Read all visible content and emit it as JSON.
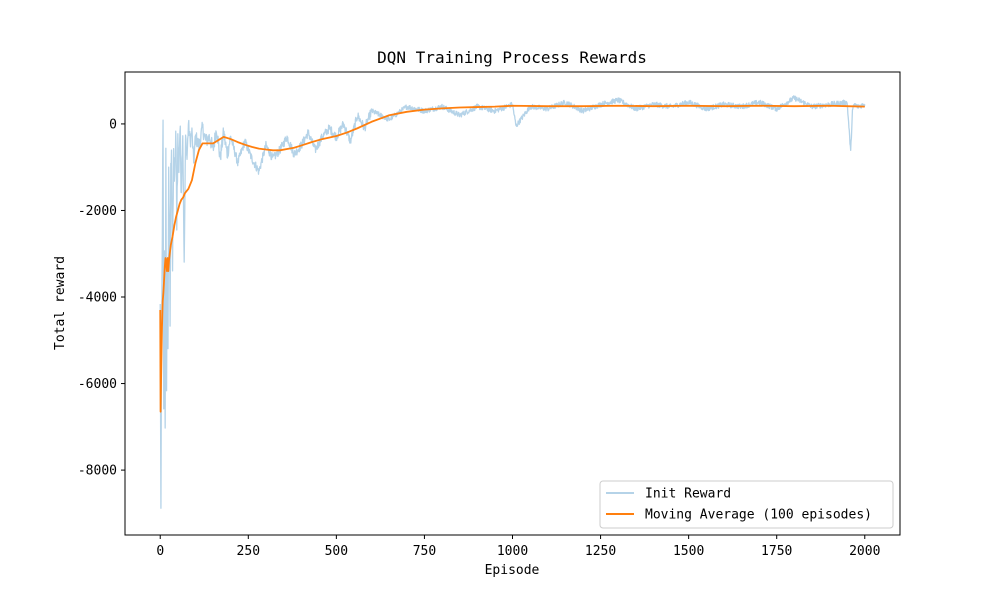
{
  "chart_data": {
    "type": "line",
    "title": "DQN Training Process Rewards",
    "xlabel": "Episode",
    "ylabel": "Total reward",
    "xlim": [
      -100,
      2100
    ],
    "ylim": [
      -9500,
      1200
    ],
    "x_ticks": [
      0,
      250,
      500,
      750,
      1000,
      1250,
      1500,
      1750,
      2000
    ],
    "x_tick_labels": [
      "0",
      "250",
      "500",
      "750",
      "1000",
      "1250",
      "1500",
      "1750",
      "2000"
    ],
    "y_ticks": [
      0,
      -2000,
      -4000,
      -6000,
      -8000
    ],
    "y_tick_labels": [
      "0",
      "-2000",
      "-4000",
      "-6000",
      "-8000"
    ],
    "grid": false,
    "legend_position": "lower-right",
    "series": [
      {
        "name": "Init Reward",
        "color": "#b5d3e8",
        "style": "noisy",
        "x": [
          0,
          2,
          4,
          6,
          8,
          10,
          12,
          14,
          16,
          18,
          20,
          22,
          24,
          26,
          28,
          30,
          32,
          35,
          38,
          41,
          44,
          47,
          50,
          53,
          56,
          60,
          64,
          68,
          72,
          76,
          80,
          85,
          90,
          95,
          100,
          110,
          120,
          130,
          140,
          150,
          160,
          170,
          180,
          190,
          200,
          220,
          240,
          260,
          280,
          300,
          320,
          340,
          360,
          380,
          400,
          420,
          440,
          460,
          480,
          500,
          520,
          540,
          560,
          580,
          600,
          650,
          700,
          750,
          800,
          850,
          900,
          950,
          1000,
          1010,
          1050,
          1100,
          1150,
          1200,
          1250,
          1300,
          1350,
          1400,
          1450,
          1500,
          1550,
          1600,
          1650,
          1700,
          1750,
          1800,
          1850,
          1900,
          1950,
          1960,
          1965,
          1970,
          1980,
          2000
        ],
        "values": [
          -4300,
          -9000,
          -5200,
          -2300,
          -100,
          -6800,
          -3200,
          -7100,
          -300,
          -6500,
          -2900,
          -5400,
          -800,
          -2600,
          -4600,
          -1200,
          -300,
          -3400,
          -800,
          -1500,
          -200,
          -2100,
          -400,
          -900,
          -100,
          -1500,
          -200,
          -3300,
          -300,
          -800,
          0,
          -400,
          -200,
          -900,
          -300,
          -500,
          -100,
          -400,
          -300,
          -600,
          -100,
          -800,
          -200,
          -700,
          -300,
          -900,
          -400,
          -800,
          -1100,
          -500,
          -800,
          -600,
          -300,
          -700,
          -500,
          -200,
          -600,
          -300,
          -100,
          -300,
          0,
          -400,
          200,
          -100,
          300,
          100,
          400,
          300,
          400,
          200,
          400,
          300,
          450,
          -50,
          400,
          350,
          500,
          300,
          450,
          550,
          350,
          450,
          400,
          500,
          350,
          450,
          400,
          500,
          350,
          600,
          400,
          450,
          500,
          -650,
          300,
          450,
          400,
          450
        ]
      },
      {
        "name": "Moving Average (100 episodes)",
        "color": "#ff7f0e",
        "style": "smooth",
        "x": [
          0,
          1,
          3,
          5,
          7,
          9,
          11,
          13,
          15,
          17,
          19,
          21,
          23,
          25,
          27,
          30,
          35,
          40,
          45,
          50,
          55,
          60,
          65,
          70,
          80,
          90,
          100,
          110,
          120,
          130,
          140,
          150,
          160,
          170,
          180,
          200,
          220,
          240,
          260,
          280,
          300,
          320,
          340,
          360,
          380,
          400,
          430,
          460,
          500,
          530,
          560,
          600,
          650,
          700,
          750,
          800,
          850,
          900,
          950,
          1000,
          1100,
          1200,
          1300,
          1400,
          1500,
          1600,
          1700,
          1800,
          1900,
          1950,
          2000
        ],
        "values": [
          -4300,
          -6650,
          -5600,
          -4700,
          -4100,
          -3900,
          -3600,
          -3300,
          -3100,
          -3200,
          -3400,
          -3100,
          -3400,
          -3150,
          -3000,
          -2800,
          -2600,
          -2350,
          -2150,
          -2000,
          -1850,
          -1750,
          -1700,
          -1600,
          -1500,
          -1300,
          -900,
          -600,
          -450,
          -450,
          -450,
          -450,
          -400,
          -350,
          -300,
          -350,
          -420,
          -480,
          -530,
          -570,
          -590,
          -610,
          -610,
          -580,
          -550,
          -500,
          -420,
          -350,
          -280,
          -200,
          -100,
          50,
          200,
          280,
          330,
          360,
          380,
          390,
          400,
          420,
          410,
          410,
          420,
          410,
          420,
          410,
          420,
          410,
          420,
          410,
          400
        ]
      }
    ]
  }
}
